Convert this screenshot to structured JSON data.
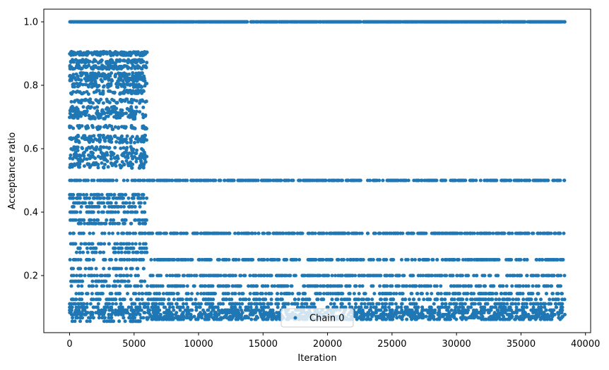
{
  "chart_data": {
    "type": "scatter",
    "title": "",
    "xlabel": "Iteration",
    "ylabel": "Acceptance ratio",
    "xlim": [
      -2000,
      40400
    ],
    "ylim": [
      0.02,
      1.04
    ],
    "xticks": [
      0,
      5000,
      10000,
      15000,
      20000,
      25000,
      30000,
      35000,
      40000
    ],
    "xtick_labels": [
      "0",
      "5000",
      "10000",
      "15000",
      "20000",
      "25000",
      "30000",
      "35000",
      "40000"
    ],
    "yticks": [
      0.2,
      0.4,
      0.6,
      0.8,
      1.0
    ],
    "ytick_labels": [
      "0.2",
      "0.4",
      "0.6",
      "0.8",
      "1.0"
    ],
    "grid": false,
    "legend_position": "bottom-center",
    "color": "#1f77b4",
    "series": [
      {
        "name": "Chain 0",
        "marker": "dot",
        "phases": [
          {
            "x_range": [
              0,
              6000
            ],
            "levels": [
              1.0,
              0.9,
              0.875,
              0.857,
              0.833,
              0.818,
              0.8,
              0.778,
              0.75,
              0.727,
              0.714,
              0.7,
              0.667,
              0.636,
              0.625,
              0.6,
              0.583,
              0.571,
              0.556,
              0.545,
              0.5,
              0.455,
              0.444,
              0.429,
              0.417,
              0.4,
              0.375,
              0.364,
              0.333,
              0.3,
              0.286,
              0.273,
              0.25,
              0.222,
              0.2,
              0.182,
              0.167,
              0.143,
              0.125,
              0.111,
              0.1,
              0.091,
              0.083,
              0.077,
              0.067,
              0.056
            ],
            "approx_points": 2400
          },
          {
            "x_range": [
              6000,
              38400
            ],
            "levels": [
              1.0,
              0.5,
              0.333,
              0.25,
              0.2,
              0.167,
              0.143,
              0.125,
              0.111,
              0.1,
              0.091,
              0.083,
              0.077,
              0.071,
              0.067,
              0.062
            ],
            "approx_points": 4200
          }
        ]
      }
    ]
  }
}
